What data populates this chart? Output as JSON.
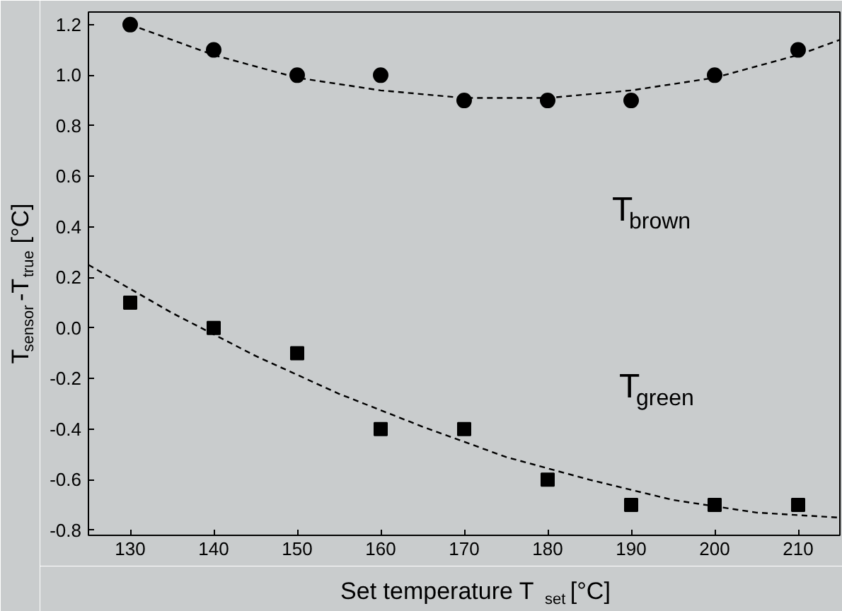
{
  "chart_data": {
    "type": "scatter",
    "xlabel": "Set temperature T$_{set}$ [°C]",
    "ylabel": "T$_{sensor}$-T$_{true}$ [°C]",
    "x": [
      130,
      140,
      150,
      160,
      170,
      180,
      190,
      200,
      210
    ],
    "series": [
      {
        "marker": "circle",
        "color": "#000000",
        "values": [
          1.2,
          1.1,
          1.0,
          1.0,
          0.9,
          0.9,
          0.9,
          1.0,
          1.1
        ]
      },
      {
        "marker": "square",
        "color": "#000000",
        "values": [
          0.1,
          0.0,
          -0.1,
          -0.4,
          -0.4,
          -0.6,
          -0.7,
          -0.7,
          -0.7
        ]
      },
      {
        "type": "line",
        "line_style": "dashed",
        "color": "#000000",
        "x": [
          130,
          140,
          150,
          160,
          170,
          180,
          190,
          200,
          210,
          215
        ],
        "values": [
          1.2,
          1.08,
          0.99,
          0.94,
          0.91,
          0.91,
          0.94,
          0.99,
          1.08,
          1.14
        ]
      },
      {
        "type": "line",
        "line_style": "dashed",
        "color": "#000000",
        "x": [
          125,
          135,
          145,
          155,
          165,
          175,
          185,
          195,
          205,
          215
        ],
        "values": [
          0.25,
          0.06,
          -0.11,
          -0.26,
          -0.39,
          -0.51,
          -0.6,
          -0.68,
          -0.73,
          -0.75
        ]
      }
    ],
    "annotations": [
      "T$_{brown}$",
      "T$_{green}$"
    ],
    "xlim": [
      125,
      215
    ],
    "ylim": [
      -0.82,
      1.25
    ],
    "xticks": [
      130,
      140,
      150,
      160,
      170,
      180,
      190,
      200,
      210
    ],
    "yticks": [
      {
        "value": -0.8,
        "label": "-0.8"
      },
      {
        "value": -0.6,
        "label": "-0.6"
      },
      {
        "value": -0.4,
        "label": "-0.4"
      },
      {
        "value": -0.2,
        "label": "-0.2"
      },
      {
        "value": 0,
        "label": "0.0"
      },
      {
        "value": 0.2,
        "label": "0.2"
      },
      {
        "value": 0.4,
        "label": "0.4"
      },
      {
        "value": 0.6,
        "label": "0.6"
      },
      {
        "value": 0.8,
        "label": "0.8"
      },
      {
        "value": 1,
        "label": "1.0"
      },
      {
        "value": 1.2,
        "label": "1.2"
      }
    ],
    "grid": false
  }
}
